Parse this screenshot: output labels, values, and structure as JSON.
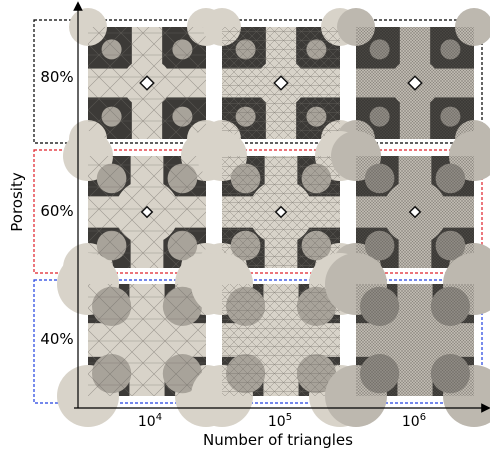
{
  "axes": {
    "y_title": "Porosity",
    "x_title": "Number of triangles"
  },
  "columns": [
    {
      "base": "10",
      "exponent": "4",
      "mesh_density": 0.15
    },
    {
      "base": "10",
      "exponent": "5",
      "mesh_density": 0.5
    },
    {
      "base": "10",
      "exponent": "6",
      "mesh_density": 1.0
    }
  ],
  "rows": [
    {
      "label": "80%",
      "frame_color": "#000000",
      "hole_size": 0.25
    },
    {
      "label": "60%",
      "frame_color": "#e0202a",
      "hole_size": 0.55
    },
    {
      "label": "40%",
      "frame_color": "#2040e0",
      "hole_size": 0.85
    }
  ]
}
